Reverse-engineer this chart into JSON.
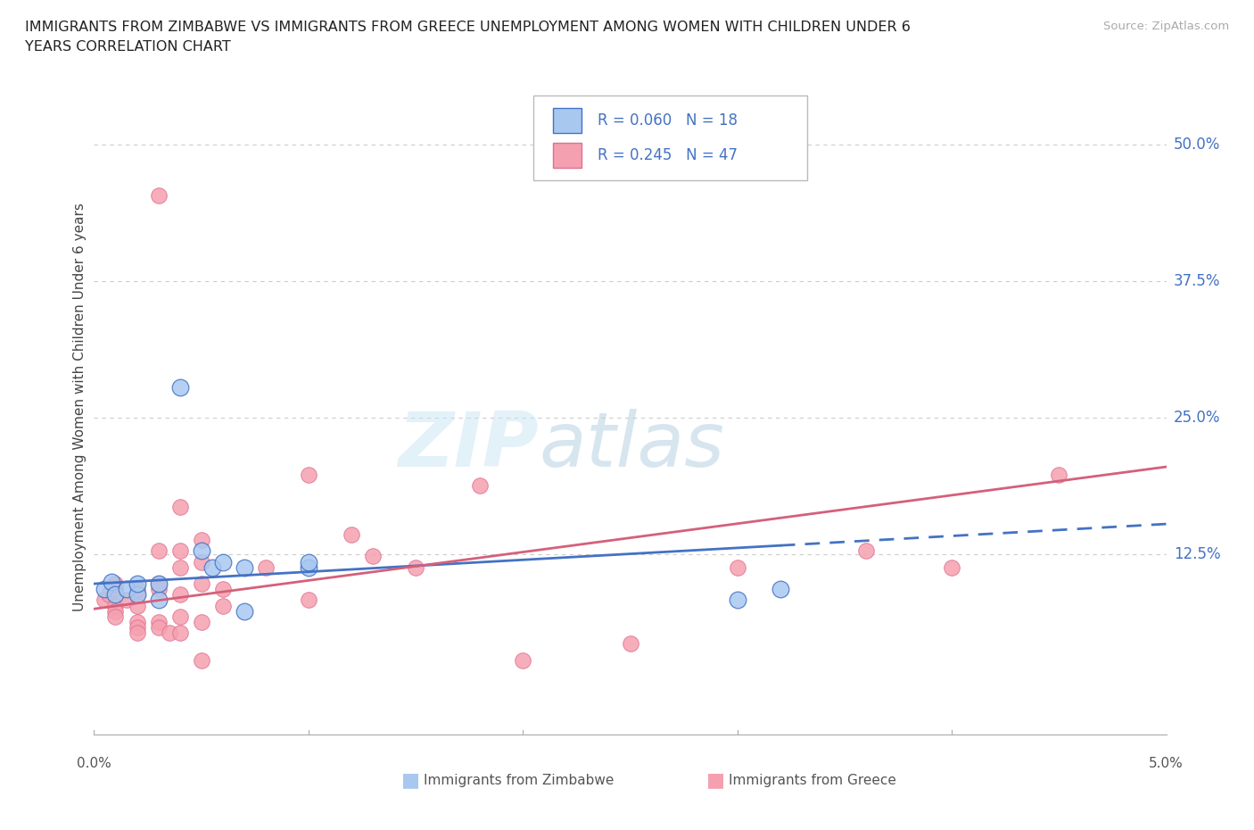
{
  "title_line1": "IMMIGRANTS FROM ZIMBABWE VS IMMIGRANTS FROM GREECE UNEMPLOYMENT AMONG WOMEN WITH CHILDREN UNDER 6",
  "title_line2": "YEARS CORRELATION CHART",
  "source_text": "Source: ZipAtlas.com",
  "ylabel": "Unemployment Among Women with Children Under 6 years",
  "ytick_labels": [
    "50.0%",
    "37.5%",
    "25.0%",
    "12.5%"
  ],
  "ytick_values": [
    0.5,
    0.375,
    0.25,
    0.125
  ],
  "xlim": [
    0.0,
    0.05
  ],
  "ylim": [
    -0.04,
    0.56
  ],
  "color_zimbabwe": "#a8c8f0",
  "color_greece": "#f5a0b0",
  "edge_color_zimbabwe": "#4472c4",
  "edge_color_greece": "#e07090",
  "line_color_zimbabwe": "#4472c4",
  "line_color_greece": "#d4607a",
  "legend_R_zimbabwe": "0.060",
  "legend_N_zimbabwe": "18",
  "legend_R_greece": "0.245",
  "legend_N_greece": "47",
  "legend_label_zimbabwe": "Immigrants from Zimbabwe",
  "legend_label_greece": "Immigrants from Greece",
  "watermark_zip": "ZIP",
  "watermark_atlas": "atlas",
  "zimbabwe_points": [
    [
      0.0005,
      0.093
    ],
    [
      0.0008,
      0.1
    ],
    [
      0.001,
      0.088
    ],
    [
      0.0015,
      0.093
    ],
    [
      0.002,
      0.088
    ],
    [
      0.002,
      0.098
    ],
    [
      0.003,
      0.083
    ],
    [
      0.003,
      0.098
    ],
    [
      0.004,
      0.278
    ],
    [
      0.005,
      0.128
    ],
    [
      0.0055,
      0.113
    ],
    [
      0.006,
      0.118
    ],
    [
      0.007,
      0.113
    ],
    [
      0.007,
      0.073
    ],
    [
      0.01,
      0.113
    ],
    [
      0.01,
      0.118
    ],
    [
      0.03,
      0.083
    ],
    [
      0.032,
      0.093
    ]
  ],
  "greece_points": [
    [
      0.0005,
      0.083
    ],
    [
      0.0007,
      0.088
    ],
    [
      0.001,
      0.093
    ],
    [
      0.001,
      0.098
    ],
    [
      0.001,
      0.078
    ],
    [
      0.001,
      0.073
    ],
    [
      0.001,
      0.068
    ],
    [
      0.0015,
      0.083
    ],
    [
      0.002,
      0.088
    ],
    [
      0.002,
      0.093
    ],
    [
      0.002,
      0.078
    ],
    [
      0.002,
      0.063
    ],
    [
      0.002,
      0.058
    ],
    [
      0.002,
      0.053
    ],
    [
      0.003,
      0.093
    ],
    [
      0.003,
      0.128
    ],
    [
      0.003,
      0.453
    ],
    [
      0.003,
      0.098
    ],
    [
      0.003,
      0.063
    ],
    [
      0.003,
      0.058
    ],
    [
      0.0035,
      0.053
    ],
    [
      0.004,
      0.128
    ],
    [
      0.004,
      0.168
    ],
    [
      0.004,
      0.113
    ],
    [
      0.004,
      0.088
    ],
    [
      0.004,
      0.068
    ],
    [
      0.004,
      0.053
    ],
    [
      0.005,
      0.138
    ],
    [
      0.005,
      0.118
    ],
    [
      0.005,
      0.098
    ],
    [
      0.005,
      0.063
    ],
    [
      0.005,
      0.028
    ],
    [
      0.006,
      0.093
    ],
    [
      0.006,
      0.078
    ],
    [
      0.008,
      0.113
    ],
    [
      0.01,
      0.198
    ],
    [
      0.01,
      0.083
    ],
    [
      0.012,
      0.143
    ],
    [
      0.013,
      0.123
    ],
    [
      0.015,
      0.113
    ],
    [
      0.018,
      0.188
    ],
    [
      0.02,
      0.028
    ],
    [
      0.025,
      0.043
    ],
    [
      0.03,
      0.113
    ],
    [
      0.036,
      0.128
    ],
    [
      0.04,
      0.113
    ],
    [
      0.045,
      0.198
    ]
  ],
  "trendline_zim_x0": 0.0,
  "trendline_zim_y0": 0.098,
  "trendline_zim_x1": 0.032,
  "trendline_zim_y1": 0.133,
  "trendline_zim_x_dashed_end": 0.05,
  "trendline_greece_x0": 0.0,
  "trendline_greece_y0": 0.075,
  "trendline_greece_x1": 0.05,
  "trendline_greece_y1": 0.205
}
